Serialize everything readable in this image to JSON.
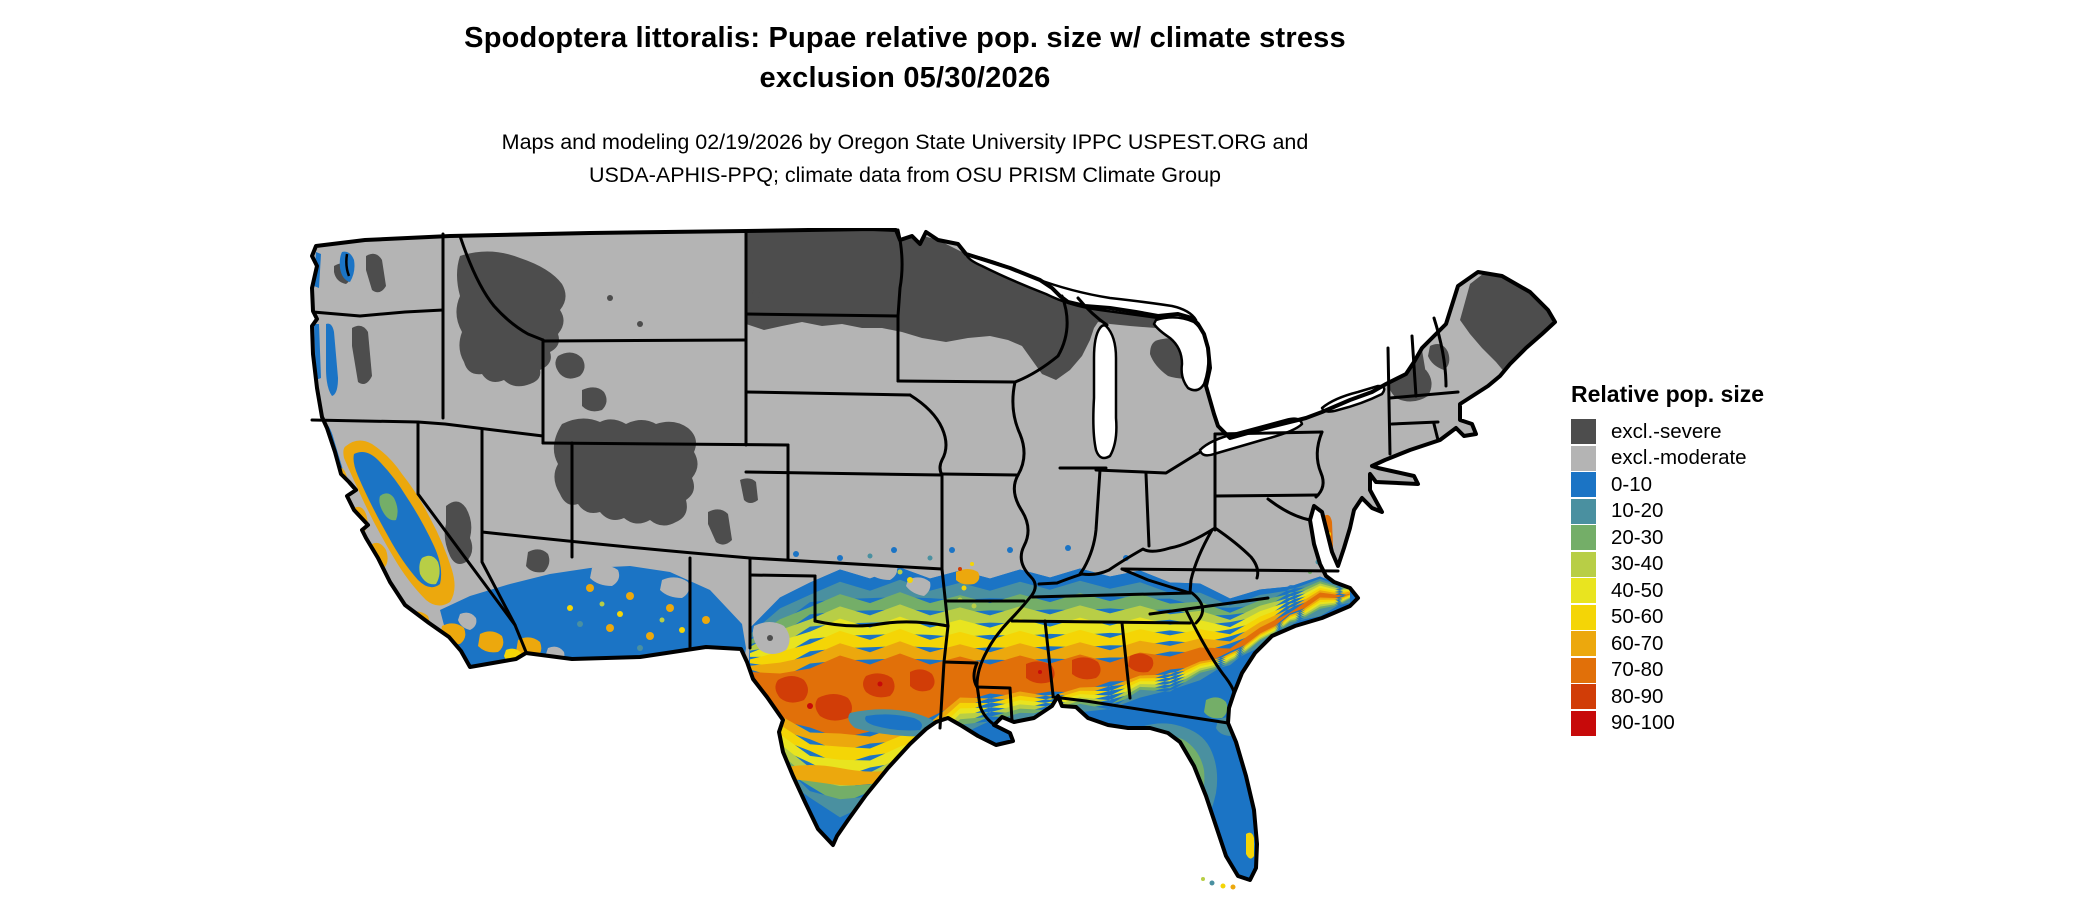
{
  "title": {
    "line1": "Spodoptera littoralis: Pupae relative pop. size w/ climate stress",
    "line2": "exclusion 05/30/2026"
  },
  "subtitle": {
    "line1": "Maps and modeling 02/19/2026 by Oregon State University IPPC USPEST.ORG and",
    "line2": "USDA-APHIS-PPQ; climate data from OSU PRISM Climate Group"
  },
  "legend": {
    "title": "Relative pop. size",
    "items": [
      {
        "label": "excl.-severe",
        "color": "#4D4D4D"
      },
      {
        "label": "excl.-moderate",
        "color": "#B4B4B4"
      },
      {
        "label": "0-10",
        "color": "#1B74C5"
      },
      {
        "label": "10-20",
        "color": "#4A90A0"
      },
      {
        "label": "20-30",
        "color": "#74AE68"
      },
      {
        "label": "30-40",
        "color": "#B8CE46"
      },
      {
        "label": "40-50",
        "color": "#E9E41F"
      },
      {
        "label": "50-60",
        "color": "#F4D506"
      },
      {
        "label": "60-70",
        "color": "#ECA80D"
      },
      {
        "label": "70-80",
        "color": "#E17009"
      },
      {
        "label": "80-90",
        "color": "#D13D07"
      },
      {
        "label": "90-100",
        "color": "#C70A0A"
      }
    ]
  },
  "map": {
    "palette": {
      "excl_severe": "#4D4D4D",
      "excl_moderate": "#B4B4B4",
      "r0_10": "#1B74C5",
      "r10_20": "#4A90A0",
      "r20_30": "#74AE68",
      "r30_40": "#B8CE46",
      "r40_50": "#E9E41F",
      "r50_60": "#F4D506",
      "r60_70": "#ECA80D",
      "r70_80": "#E17009",
      "r80_90": "#D13D07",
      "r90_100": "#C70A0A"
    },
    "water": "#FFFFFF",
    "border": "#000000"
  }
}
